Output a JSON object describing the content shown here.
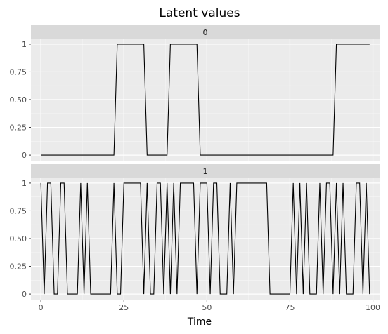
{
  "chart_data": {
    "type": "line",
    "title": "Latent values",
    "xlabel": "Time",
    "ylabel": "",
    "xlim": [
      -3,
      102
    ],
    "ylim": [
      -0.05,
      1.05
    ],
    "x_ticks": [
      0,
      25,
      50,
      75,
      100
    ],
    "y_ticks": [
      0,
      0.25,
      0.5,
      0.75,
      1
    ],
    "y_tick_labels": [
      "0",
      "0.25",
      "0.50",
      "0.75",
      "1"
    ],
    "grid": true,
    "facets": [
      {
        "strip_label": "0",
        "x": [
          0,
          1,
          2,
          3,
          4,
          5,
          6,
          7,
          8,
          9,
          10,
          11,
          12,
          13,
          14,
          15,
          16,
          17,
          18,
          19,
          20,
          21,
          22,
          23,
          24,
          25,
          26,
          27,
          28,
          29,
          30,
          31,
          32,
          33,
          34,
          35,
          36,
          37,
          38,
          39,
          40,
          41,
          42,
          43,
          44,
          45,
          46,
          47,
          48,
          49,
          50,
          51,
          52,
          53,
          54,
          55,
          56,
          57,
          58,
          59,
          60,
          61,
          62,
          63,
          64,
          65,
          66,
          67,
          68,
          69,
          70,
          71,
          72,
          73,
          74,
          75,
          76,
          77,
          78,
          79,
          80,
          81,
          82,
          83,
          84,
          85,
          86,
          87,
          88,
          89,
          90,
          91,
          92,
          93,
          94,
          95,
          96,
          97,
          98,
          99
        ],
        "values": [
          0,
          0,
          0,
          0,
          0,
          0,
          0,
          0,
          0,
          0,
          0,
          0,
          0,
          0,
          0,
          0,
          0,
          0,
          0,
          0,
          0,
          0,
          0,
          1,
          1,
          1,
          1,
          1,
          1,
          1,
          1,
          1,
          0,
          0,
          0,
          0,
          0,
          0,
          0,
          1,
          1,
          1,
          1,
          1,
          1,
          1,
          1,
          1,
          0,
          0,
          0,
          0,
          0,
          0,
          0,
          0,
          0,
          0,
          0,
          0,
          0,
          0,
          0,
          0,
          0,
          0,
          0,
          0,
          0,
          0,
          0,
          0,
          0,
          0,
          0,
          0,
          0,
          0,
          0,
          0,
          0,
          0,
          0,
          0,
          0,
          0,
          0,
          0,
          0,
          1,
          1,
          1,
          1,
          1,
          1,
          1,
          1,
          1,
          1,
          1
        ]
      },
      {
        "strip_label": "1",
        "x": [
          0,
          1,
          2,
          3,
          4,
          5,
          6,
          7,
          8,
          9,
          10,
          11,
          12,
          13,
          14,
          15,
          16,
          17,
          18,
          19,
          20,
          21,
          22,
          23,
          24,
          25,
          26,
          27,
          28,
          29,
          30,
          31,
          32,
          33,
          34,
          35,
          36,
          37,
          38,
          39,
          40,
          41,
          42,
          43,
          44,
          45,
          46,
          47,
          48,
          49,
          50,
          51,
          52,
          53,
          54,
          55,
          56,
          57,
          58,
          59,
          60,
          61,
          62,
          63,
          64,
          65,
          66,
          67,
          68,
          69,
          70,
          71,
          72,
          73,
          74,
          75,
          76,
          77,
          78,
          79,
          80,
          81,
          82,
          83,
          84,
          85,
          86,
          87,
          88,
          89,
          90,
          91,
          92,
          93,
          94,
          95,
          96,
          97,
          98,
          99
        ],
        "values": [
          1,
          0,
          1,
          1,
          0,
          0,
          1,
          1,
          0,
          0,
          0,
          0,
          1,
          0,
          1,
          0,
          0,
          0,
          0,
          0,
          0,
          0,
          1,
          0,
          0,
          1,
          1,
          1,
          1,
          1,
          1,
          0,
          1,
          0,
          0,
          1,
          1,
          0,
          1,
          0,
          1,
          0,
          1,
          1,
          1,
          1,
          1,
          0,
          1,
          1,
          1,
          0,
          1,
          1,
          0,
          0,
          0,
          1,
          0,
          1,
          1,
          1,
          1,
          1,
          1,
          1,
          1,
          1,
          1,
          0,
          0,
          0,
          0,
          0,
          0,
          0,
          1,
          0,
          1,
          0,
          1,
          0,
          0,
          0,
          1,
          0,
          1,
          1,
          0,
          1,
          0,
          1,
          0,
          0,
          0,
          1,
          1,
          0,
          1,
          0
        ]
      }
    ]
  }
}
